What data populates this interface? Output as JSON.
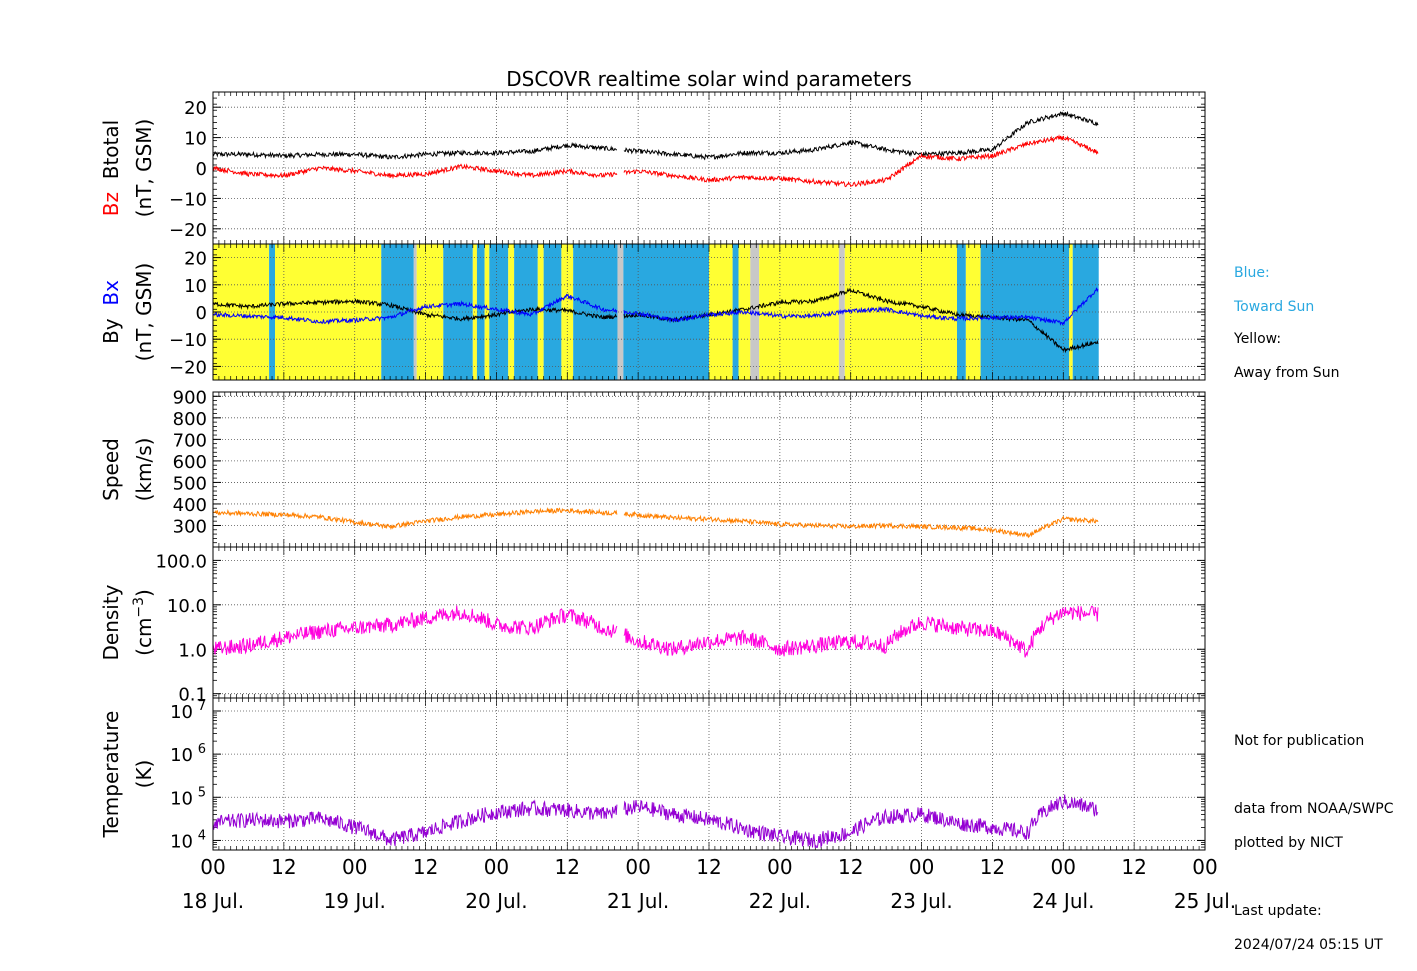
{
  "title": "DSCOVR realtime solar wind parameters",
  "colors": {
    "bz": "#ff0000",
    "btotal": "#000000",
    "bx": "#0000ff",
    "by": "#000000",
    "speed": "#ff8000",
    "density": "#ff00dd",
    "temperature": "#9400d3",
    "toward_bg": "#29a8e0",
    "away_bg": "#ffff33",
    "gap_bg": "#c8c8c8",
    "legend_blue_text": "#29a8e0"
  },
  "legend": {
    "blue_line1": "Blue:",
    "blue_line2": "Toward Sun",
    "yellow_line1": "Yellow:",
    "yellow_line2": "Away from Sun"
  },
  "notes": {
    "not_for_pub": "Not for publication",
    "data_from": "data from NOAA/SWPC",
    "plotted_by": "plotted by NICT",
    "last_update_label": "Last update:",
    "last_update_value": "2024/07/24 05:15 UT"
  },
  "x_axis": {
    "unit": "hours since 18 Jul. 00 UT",
    "range": [
      0,
      168
    ],
    "hour_ticks": [
      "00",
      "12",
      "00",
      "12",
      "00",
      "12",
      "00",
      "12",
      "00",
      "12",
      "00",
      "12",
      "00",
      "12",
      "00"
    ],
    "date_labels": [
      "18 Jul.",
      "19 Jul.",
      "20 Jul.",
      "21 Jul.",
      "22 Jul.",
      "23 Jul.",
      "24 Jul.",
      "25 Jul."
    ]
  },
  "chart_data": [
    {
      "type": "line",
      "panel": "magnetic-field-btotal-bz",
      "ylabel_parts": [
        "Btotal",
        "Bz",
        "(nT, GSM)"
      ],
      "ylim": [
        -25,
        25
      ],
      "yticks": [
        "20",
        "10",
        "0",
        "−10",
        "−20"
      ],
      "ytick_values": [
        20,
        10,
        0,
        -10,
        -20
      ],
      "grid": true,
      "series": [
        {
          "name": "Btotal",
          "x": [
            0,
            6,
            12,
            18,
            24,
            30,
            36,
            42,
            48,
            54,
            60,
            66,
            72,
            78,
            84,
            90,
            96,
            102,
            108,
            114,
            120,
            126,
            132,
            138,
            144,
            150
          ],
          "values": [
            4.5,
            4.5,
            4.0,
            4.5,
            4.5,
            3.5,
            4.5,
            5.0,
            5.0,
            5.5,
            7.5,
            6.5,
            5.5,
            4.5,
            3.5,
            5.0,
            5.0,
            6.0,
            8.5,
            6.0,
            4.5,
            5.0,
            6.0,
            15.0,
            18.0,
            14.5
          ]
        },
        {
          "name": "Bz",
          "x": [
            0,
            6,
            12,
            18,
            24,
            30,
            36,
            42,
            48,
            54,
            60,
            66,
            72,
            78,
            84,
            90,
            96,
            102,
            108,
            114,
            120,
            126,
            132,
            138,
            144,
            150
          ],
          "values": [
            0.0,
            -2.0,
            -2.5,
            0.0,
            -1.0,
            -2.5,
            -2.0,
            0.5,
            -1.0,
            -2.5,
            -1.0,
            -2.5,
            -1.0,
            -2.5,
            -4.0,
            -3.0,
            -3.5,
            -4.5,
            -5.5,
            -4.0,
            4.0,
            3.0,
            4.0,
            8.0,
            10.0,
            5.0
          ]
        }
      ]
    },
    {
      "type": "line",
      "panel": "magnetic-field-by-bx",
      "ylabel_parts": [
        "By",
        "Bx",
        "(nT, GSM)"
      ],
      "ylim": [
        -25,
        25
      ],
      "yticks": [
        "20",
        "10",
        "0",
        "−10",
        "−20"
      ],
      "ytick_values": [
        20,
        10,
        0,
        -10,
        -20
      ],
      "grid": true,
      "sector_background": [
        {
          "kind": "away",
          "from": 0,
          "to": 9.5
        },
        {
          "kind": "toward",
          "from": 9.5,
          "to": 10.5
        },
        {
          "kind": "away",
          "from": 10.5,
          "to": 28.5
        },
        {
          "kind": "toward",
          "from": 28.5,
          "to": 34
        },
        {
          "kind": "gap",
          "from": 34,
          "to": 34.5
        },
        {
          "kind": "away",
          "from": 34.5,
          "to": 39
        },
        {
          "kind": "toward",
          "from": 39,
          "to": 44
        },
        {
          "kind": "away",
          "from": 44,
          "to": 44.7
        },
        {
          "kind": "toward",
          "from": 44.7,
          "to": 46
        },
        {
          "kind": "away",
          "from": 46,
          "to": 46.8
        },
        {
          "kind": "toward",
          "from": 46.8,
          "to": 50
        },
        {
          "kind": "away",
          "from": 50,
          "to": 51
        },
        {
          "kind": "toward",
          "from": 51,
          "to": 55
        },
        {
          "kind": "away",
          "from": 55,
          "to": 56
        },
        {
          "kind": "toward",
          "from": 56,
          "to": 59
        },
        {
          "kind": "away",
          "from": 59,
          "to": 61
        },
        {
          "kind": "toward",
          "from": 61,
          "to": 68.5
        },
        {
          "kind": "gap",
          "from": 68.5,
          "to": 69.5
        },
        {
          "kind": "toward",
          "from": 69.5,
          "to": 84
        },
        {
          "kind": "away",
          "from": 84,
          "to": 88
        },
        {
          "kind": "toward",
          "from": 88,
          "to": 89
        },
        {
          "kind": "away",
          "from": 89,
          "to": 91
        },
        {
          "kind": "gap",
          "from": 91,
          "to": 92.5
        },
        {
          "kind": "away",
          "from": 92.5,
          "to": 106
        },
        {
          "kind": "gap",
          "from": 106,
          "to": 107
        },
        {
          "kind": "away",
          "from": 107,
          "to": 126
        },
        {
          "kind": "toward",
          "from": 126,
          "to": 127.5
        },
        {
          "kind": "away",
          "from": 127.5,
          "to": 130
        },
        {
          "kind": "toward",
          "from": 130,
          "to": 145
        },
        {
          "kind": "away",
          "from": 145,
          "to": 145.6
        },
        {
          "kind": "toward",
          "from": 145.6,
          "to": 150
        }
      ],
      "series": [
        {
          "name": "By",
          "x": [
            0,
            6,
            12,
            18,
            24,
            30,
            36,
            42,
            48,
            54,
            60,
            66,
            72,
            78,
            84,
            90,
            96,
            102,
            108,
            114,
            120,
            126,
            132,
            138,
            144,
            150
          ],
          "values": [
            3.0,
            2.0,
            3.0,
            3.5,
            4.0,
            2.5,
            -1.0,
            -2.5,
            -1.0,
            1.0,
            0.5,
            -2.0,
            -1.0,
            -3.0,
            -1.0,
            1.0,
            3.5,
            4.0,
            8.0,
            4.0,
            2.0,
            -1.0,
            -2.0,
            -3.0,
            -14.0,
            -11.0
          ]
        },
        {
          "name": "Bx",
          "x": [
            0,
            6,
            12,
            18,
            24,
            30,
            36,
            42,
            48,
            54,
            60,
            66,
            72,
            78,
            84,
            90,
            96,
            102,
            108,
            114,
            120,
            126,
            132,
            138,
            144,
            150
          ],
          "values": [
            -1.0,
            -1.5,
            -2.0,
            -3.5,
            -3.0,
            -2.0,
            2.0,
            3.0,
            1.0,
            -1.0,
            6.0,
            1.0,
            -0.5,
            -3.0,
            -1.0,
            0.0,
            -1.5,
            -1.5,
            0.5,
            1.0,
            -1.5,
            -2.5,
            -2.0,
            -2.0,
            -4.0,
            9.0
          ]
        }
      ]
    },
    {
      "type": "line",
      "panel": "speed",
      "ylabel_parts": [
        "Speed",
        "(km/s)"
      ],
      "ylim": [
        200,
        920
      ],
      "yticks": [
        "900",
        "800",
        "700",
        "600",
        "500",
        "400",
        "300"
      ],
      "ytick_values": [
        900,
        800,
        700,
        600,
        500,
        400,
        300
      ],
      "grid": true,
      "series": [
        {
          "name": "Speed",
          "x": [
            0,
            6,
            12,
            18,
            24,
            30,
            36,
            42,
            48,
            54,
            60,
            66,
            72,
            78,
            84,
            90,
            96,
            102,
            108,
            114,
            120,
            126,
            132,
            138,
            144,
            150
          ],
          "values": [
            360,
            355,
            350,
            340,
            315,
            295,
            320,
            340,
            350,
            365,
            370,
            360,
            350,
            335,
            330,
            320,
            305,
            300,
            295,
            300,
            295,
            290,
            280,
            255,
            330,
            320
          ]
        }
      ]
    },
    {
      "type": "line",
      "panel": "density",
      "ylabel_parts": [
        "Density",
        "(cm",
        "−3",
        ")"
      ],
      "log_scale": true,
      "ylim": [
        0.08,
        200
      ],
      "yticks": [
        "100.0",
        "10.0",
        "1.0",
        "0.1"
      ],
      "ytick_values": [
        100,
        10,
        1,
        0.1
      ],
      "grid": true,
      "series": [
        {
          "name": "Density",
          "x": [
            0,
            6,
            12,
            18,
            24,
            30,
            36,
            42,
            48,
            54,
            60,
            66,
            72,
            78,
            84,
            90,
            96,
            102,
            108,
            114,
            120,
            126,
            132,
            138,
            144,
            150
          ],
          "values": [
            1.0,
            1.2,
            1.8,
            2.5,
            3.0,
            3.5,
            5.0,
            7.0,
            3.5,
            3.0,
            6.0,
            3.0,
            1.5,
            1.0,
            1.5,
            1.8,
            1.0,
            1.2,
            1.5,
            1.2,
            4.0,
            3.0,
            2.5,
            0.8,
            7.0,
            6.0
          ]
        }
      ]
    },
    {
      "type": "line",
      "panel": "temperature",
      "ylabel_parts": [
        "Temperature",
        "(K)"
      ],
      "log_scale": true,
      "ylim": [
        6000,
        20000000
      ],
      "yticks": [
        "10",
        "10",
        "10",
        "10"
      ],
      "ytick_exponents": [
        "7",
        "6",
        "5",
        "4"
      ],
      "ytick_values": [
        10000000,
        1000000,
        100000,
        10000
      ],
      "grid": true,
      "series": [
        {
          "name": "Temperature",
          "x": [
            0,
            6,
            12,
            18,
            24,
            30,
            36,
            42,
            48,
            54,
            60,
            66,
            72,
            78,
            84,
            90,
            96,
            102,
            108,
            114,
            120,
            126,
            132,
            138,
            144,
            150
          ],
          "values": [
            25000,
            30000,
            28000,
            32000,
            20000,
            10000,
            15000,
            28000,
            45000,
            55000,
            50000,
            40000,
            60000,
            40000,
            30000,
            18000,
            12000,
            10000,
            15000,
            35000,
            40000,
            25000,
            20000,
            15000,
            80000,
            50000
          ]
        }
      ]
    }
  ]
}
